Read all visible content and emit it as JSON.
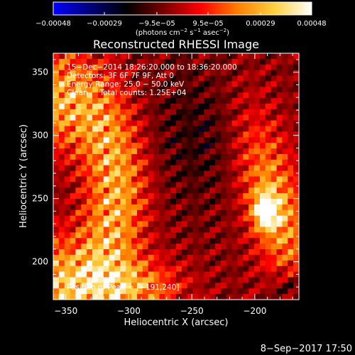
{
  "chart_data": {
    "type": "heatmap",
    "title": "Reconstructed RHESSI Image",
    "xlabel": "Heliocentric X (arcsec)",
    "ylabel": "Heliocentric Y (arcsec)",
    "xlim": [
      -360,
      -165
    ],
    "ylim": [
      170,
      365
    ],
    "x_ticks": [
      -350,
      -300,
      -250,
      -200
    ],
    "x_tick_labels": [
      "−350",
      "−300",
      "−250",
      "−200"
    ],
    "y_ticks": [
      200,
      250,
      300,
      350
    ],
    "y_tick_labels": [
      "200",
      "250",
      "300",
      "350"
    ],
    "colorbar": {
      "ticks": [
        -0.00048,
        -0.00029,
        -9.5e-05,
        9.5e-05,
        0.00029,
        0.00048
      ],
      "tick_labels": [
        "−0.00048",
        "−0.00029",
        "−9.5e−05",
        "9.5e−05",
        "0.00029",
        "0.00048"
      ],
      "unit_parts": [
        "(photons cm",
        "−2",
        " s",
        "−1",
        " asec",
        "−2",
        ")"
      ],
      "colors": [
        "#0000ff",
        "#00007a",
        "#000000",
        "#7a0000",
        "#ff0000",
        "#ff8000",
        "#ffd040",
        "#ffffff"
      ]
    },
    "annotations": [
      "15−Dec−2014 18:26:20.000 to 18:36:20.000",
      "Detectors: 3F 6F 7F 9F, Att 0",
      "Energy Range: 25.0 − 50.0 keV",
      "Clean     Total counts: 1.25E+04"
    ],
    "peak_label": "Position of Peak = [−191,240]",
    "peak": [
      -191,
      240
    ]
  },
  "footer": {
    "date": "8−Sep−2017 17:50"
  }
}
